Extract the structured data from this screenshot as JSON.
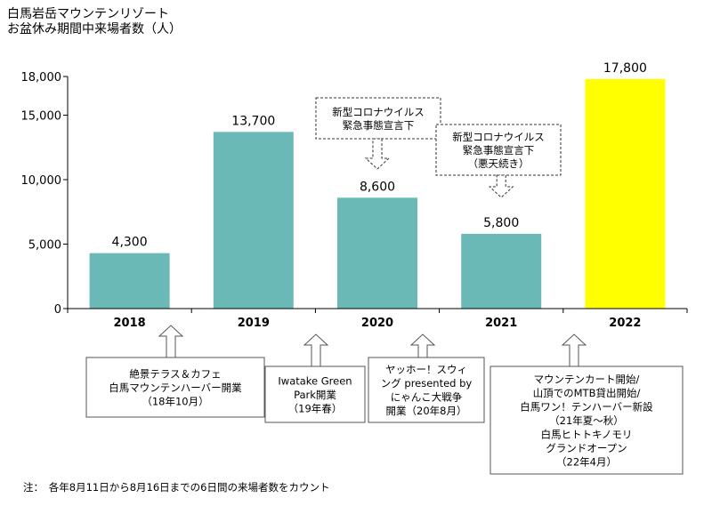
{
  "title_lines": [
    "白馬岩岳マウンテンリゾート",
    "お盆休み期間中来場者数（人）"
  ],
  "footnote": "注：　各年8月11日から8月16日までの6日間の来場者数をカウント",
  "colors": {
    "bar": "#6bb9b7",
    "highlight": "#ffff00",
    "axis": "#000000",
    "note_border": "#555555"
  },
  "chart_data": {
    "type": "bar",
    "categories": [
      "2018",
      "2019",
      "2020",
      "2021",
      "2022"
    ],
    "values": [
      4300,
      13700,
      8600,
      5800,
      17800
    ],
    "value_labels": [
      "4,300",
      "13,700",
      "8,600",
      "5,800",
      "17,800"
    ],
    "highlight_index": 4,
    "ylim": [
      0,
      18000
    ],
    "yticks": [
      0,
      5000,
      10000,
      15000,
      18000
    ],
    "ytick_labels": [
      "0",
      "5,000",
      "10,000",
      "15,000",
      "18,000"
    ],
    "title": "白馬岩岳マウンテンリゾート お盆休み期間中来場者数（人）",
    "xlabel": "",
    "ylabel": "",
    "grid": false,
    "top_annotations": [
      {
        "category_index": 2,
        "lines": [
          "新型コロナウイルス",
          "緊急事態宣言下"
        ]
      },
      {
        "category_index": 3,
        "lines": [
          "新型コロナウイルス",
          "緊急事態宣言下",
          "（悪天続き）"
        ]
      }
    ],
    "bottom_annotations": [
      {
        "category_index": 0,
        "lines": [
          "絶景テラス＆カフェ",
          "白馬マウンテンハーバー開業",
          "（18年10月）"
        ]
      },
      {
        "category_index": 1,
        "lines": [
          "Iwatake Green",
          "Park開業",
          "（19年春）"
        ]
      },
      {
        "category_index": 2,
        "lines": [
          "ヤッホー！スウィ",
          "ング presented by",
          "にゃんこ大戦争",
          "開業（20年8月）"
        ]
      },
      {
        "category_index": 4,
        "lines": [
          "マウンテンカート開始/",
          "山頂でのMTB貸出開始/",
          "白馬ワン！テンハーバー新設",
          "（21年夏～秋）",
          "白馬ヒトトキノモリ",
          "グランドオープン",
          "（22年4月）"
        ]
      }
    ]
  }
}
